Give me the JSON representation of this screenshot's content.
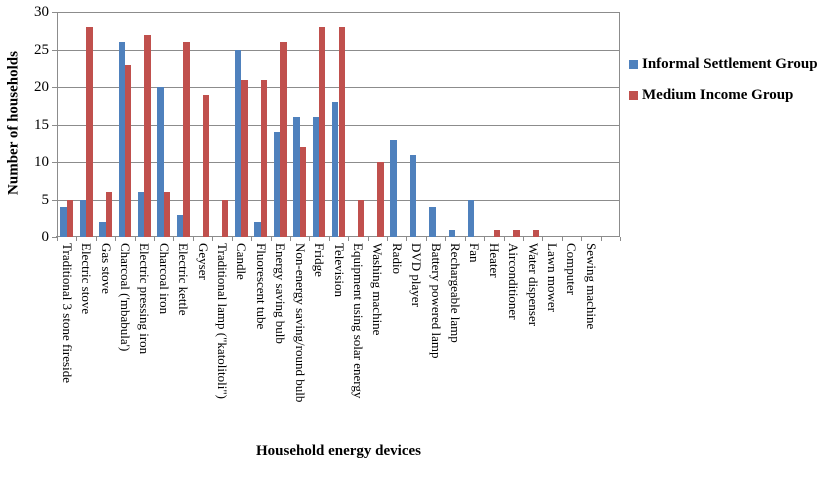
{
  "chart_data": {
    "type": "bar",
    "title": "",
    "xlabel": "Household energy devices",
    "ylabel": "Number of households",
    "ylim": [
      0,
      30
    ],
    "ytick_step": 5,
    "grid": true,
    "legend_position": "right",
    "categories": [
      "Traditional 3 stone fireside",
      "Electric stove",
      "Gas stove",
      "Charcoal ('mbabula')",
      "Electric pressing iron",
      "Charcoal iron",
      "Electric kettle",
      "Geyser",
      "Traditional lamp (\"katolitoli\")",
      "Candle",
      "Fluorescent tube",
      "Energy saving bulb",
      "Non-energy saving/round bulb",
      "Fridge",
      "Television",
      "Equipment using solar energy",
      "Washing machine",
      "Radio",
      "DVD player",
      "Battery powered lamp",
      "Rechargeable lamp",
      "Fan",
      "Heater",
      "Airconditioner",
      "Water dispenser",
      "Lawn mower",
      "Computer",
      "Sewing machine"
    ],
    "series": [
      {
        "name": "Informal Settlement Group",
        "color": "#4F81BD",
        "values": [
          4,
          5,
          2,
          26,
          6,
          20,
          3,
          0,
          0,
          25,
          2,
          14,
          16,
          16,
          18,
          0,
          0,
          13,
          11,
          4,
          1,
          5,
          0,
          0,
          0,
          0,
          0,
          0
        ]
      },
      {
        "name": "Medium Income Group",
        "color": "#C0504D",
        "values": [
          5,
          28,
          6,
          23,
          27,
          6,
          26,
          19,
          5,
          21,
          21,
          26,
          12,
          28,
          28,
          5,
          10,
          0,
          0,
          0,
          0,
          0,
          1,
          1,
          1,
          0,
          0,
          0
        ]
      }
    ]
  },
  "colors": {
    "axis": "#8C8C8C",
    "grid": "#8C8C8C",
    "text": "#000000",
    "background": "#FFFFFF"
  }
}
